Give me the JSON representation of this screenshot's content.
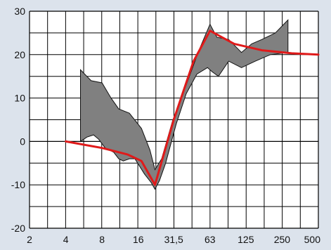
{
  "chart_data": {
    "type": "area",
    "title": "",
    "xlabel": "",
    "ylabel": "",
    "x_scale": "log2",
    "xlim": [
      2,
      500
    ],
    "ylim": [
      -20,
      30
    ],
    "grid": true,
    "x_ticks": [
      {
        "value": 2,
        "label": "2"
      },
      {
        "value": 4,
        "label": "4"
      },
      {
        "value": 8,
        "label": "8"
      },
      {
        "value": 16,
        "label": "16"
      },
      {
        "value": 31.5,
        "label": "31,5"
      },
      {
        "value": 63,
        "label": "63"
      },
      {
        "value": 125,
        "label": "125"
      },
      {
        "value": 250,
        "label": "250"
      },
      {
        "value": 500,
        "label": "500"
      }
    ],
    "y_ticks": [
      {
        "value": 30,
        "label": "30"
      },
      {
        "value": 20,
        "label": "20"
      },
      {
        "value": 10,
        "label": "10"
      },
      {
        "value": 0,
        "label": "0"
      },
      {
        "value": -10,
        "label": "-10"
      },
      {
        "value": -20,
        "label": "-20"
      }
    ],
    "band": {
      "color": "#808080",
      "upper": [
        [
          5.3,
          16.5
        ],
        [
          6.5,
          14
        ],
        [
          8,
          13.5
        ],
        [
          9.5,
          10
        ],
        [
          11,
          7.5
        ],
        [
          13.5,
          6.5
        ],
        [
          17,
          3
        ],
        [
          20,
          -2
        ],
        [
          22,
          -6.5
        ],
        [
          25,
          -4
        ],
        [
          31,
          5
        ],
        [
          40,
          13
        ],
        [
          51,
          21
        ],
        [
          63,
          27
        ],
        [
          72,
          24
        ],
        [
          90,
          23.5
        ],
        [
          115,
          20.5
        ],
        [
          140,
          22.5
        ],
        [
          170,
          23.5
        ],
        [
          220,
          25
        ],
        [
          280,
          28
        ]
      ],
      "lower": [
        [
          5.3,
          0
        ],
        [
          6,
          1
        ],
        [
          6.8,
          1.5
        ],
        [
          7.5,
          0.5
        ],
        [
          8.5,
          -1.5
        ],
        [
          10,
          -2.5
        ],
        [
          11,
          -4
        ],
        [
          12,
          -4.5
        ],
        [
          13.5,
          -4
        ],
        [
          15,
          -4
        ],
        [
          18,
          -7.5
        ],
        [
          20.5,
          -9.5
        ],
        [
          22,
          -11
        ],
        [
          24,
          -9
        ],
        [
          27,
          -5
        ],
        [
          33,
          4
        ],
        [
          40,
          11
        ],
        [
          49,
          15.5
        ],
        [
          60,
          17
        ],
        [
          66,
          16
        ],
        [
          74,
          15
        ],
        [
          90,
          18.5
        ],
        [
          115,
          17
        ],
        [
          150,
          18.5
        ],
        [
          200,
          20
        ],
        [
          280,
          20.5
        ]
      ]
    },
    "series": [
      {
        "color": "#e01a1a",
        "points": [
          [
            4,
            0
          ],
          [
            8,
            -1.5
          ],
          [
            13,
            -3
          ],
          [
            17,
            -4.5
          ],
          [
            22,
            -10
          ],
          [
            31.5,
            5
          ],
          [
            46,
            18.5
          ],
          [
            63,
            25.5
          ],
          [
            100,
            22.5
          ],
          [
            170,
            21
          ],
          [
            300,
            20.3
          ],
          [
            500,
            20
          ]
        ]
      }
    ]
  }
}
